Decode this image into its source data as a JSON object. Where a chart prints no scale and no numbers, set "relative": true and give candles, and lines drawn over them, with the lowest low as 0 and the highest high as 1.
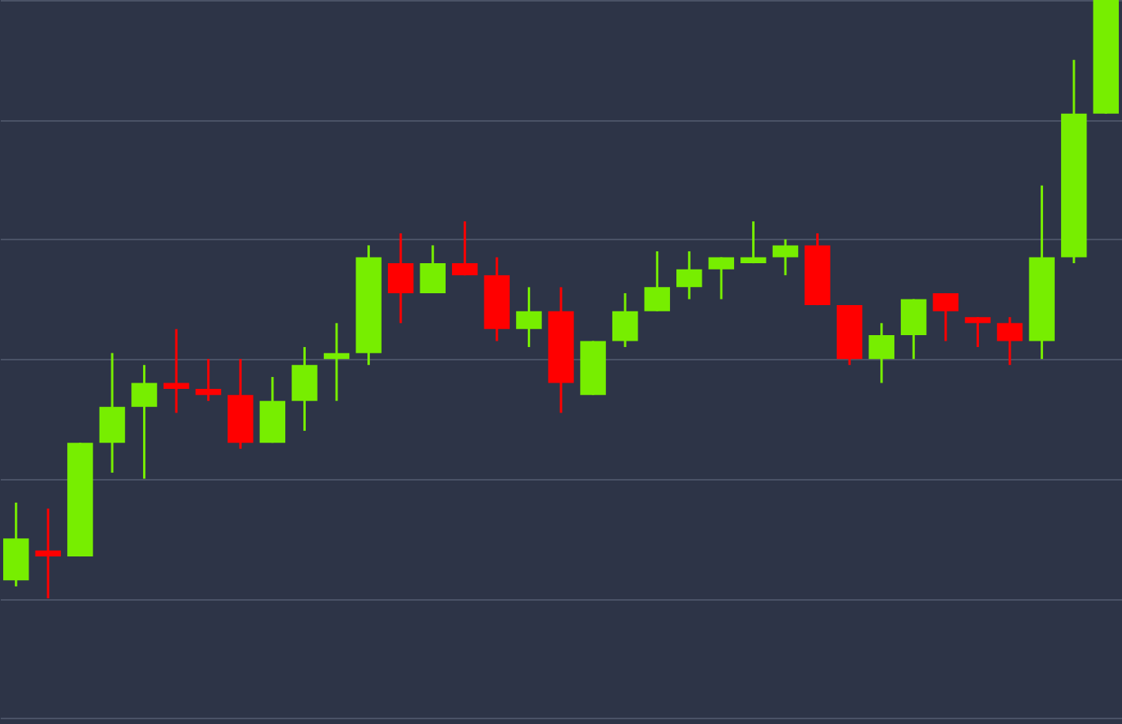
{
  "chart_data": {
    "type": "candlestick",
    "relative": true,
    "grid": true,
    "categories": [
      null,
      null,
      null,
      null,
      null,
      null,
      null,
      null,
      null,
      null,
      null,
      null,
      null,
      null,
      null,
      null,
      null,
      null,
      null,
      null,
      null,
      null,
      null,
      null,
      null,
      null,
      null,
      null,
      null,
      null,
      null,
      null,
      null,
      null,
      null
    ],
    "ohlc": [
      [
        0.03,
        0.16,
        0.02,
        0.1
      ],
      [
        0.08,
        0.15,
        0,
        0.07
      ],
      [
        0.07,
        0.26,
        0.07,
        0.26
      ],
      [
        0.26,
        0.41,
        0.21,
        0.32
      ],
      [
        0.32,
        0.39,
        0.2,
        0.36
      ],
      [
        0.36,
        0.45,
        0.31,
        0.35
      ],
      [
        0.35,
        0.4,
        0.33,
        0.34
      ],
      [
        0.34,
        0.4,
        0.25,
        0.26
      ],
      [
        0.26,
        0.37,
        0.26,
        0.33
      ],
      [
        0.33,
        0.42,
        0.28,
        0.39
      ],
      [
        0.4,
        0.46,
        0.33,
        0.41
      ],
      [
        0.41,
        0.59,
        0.39,
        0.57
      ],
      [
        0.56,
        0.61,
        0.46,
        0.51
      ],
      [
        0.51,
        0.59,
        0.51,
        0.56
      ],
      [
        0.56,
        0.63,
        0.54,
        0.54
      ],
      [
        0.54,
        0.57,
        0.43,
        0.45
      ],
      [
        0.45,
        0.52,
        0.42,
        0.48
      ],
      [
        0.48,
        0.52,
        0.31,
        0.36
      ],
      [
        0.34,
        0.43,
        0.34,
        0.43
      ],
      [
        0.43,
        0.51,
        0.42,
        0.48
      ],
      [
        0.48,
        0.58,
        0.48,
        0.52
      ],
      [
        0.52,
        0.58,
        0.5,
        0.55
      ],
      [
        0.55,
        0.57,
        0.5,
        0.57
      ],
      [
        0.56,
        0.63,
        0.56,
        0.57
      ],
      [
        0.57,
        0.6,
        0.54,
        0.59
      ],
      [
        0.59,
        0.61,
        0.49,
        0.49
      ],
      [
        0.49,
        0.49,
        0.39,
        0.4
      ],
      [
        0.4,
        0.46,
        0.36,
        0.44
      ],
      [
        0.44,
        0.5,
        0.4,
        0.5
      ],
      [
        0.51,
        0.51,
        0.43,
        0.48
      ],
      [
        0.47,
        0.47,
        0.42,
        0.46
      ],
      [
        0.46,
        0.47,
        0.39,
        0.43
      ],
      [
        0.43,
        0.69,
        0.4,
        0.57
      ],
      [
        0.57,
        0.9,
        0.56,
        0.81
      ],
      [
        0.81,
        1,
        0.81,
        1
      ]
    ],
    "colors": [
      "#77ee00",
      "#ff0000",
      "#77ee00",
      "#77ee00",
      "#77ee00",
      "#ff0000",
      "#ff0000",
      "#ff0000",
      "#77ee00",
      "#77ee00",
      "#77ee00",
      "#77ee00",
      "#ff0000",
      "#77ee00",
      "#ff0000",
      "#ff0000",
      "#77ee00",
      "#ff0000",
      "#77ee00",
      "#77ee00",
      "#77ee00",
      "#77ee00",
      "#77ee00",
      "#77ee00",
      "#77ee00",
      "#ff0000",
      "#ff0000",
      "#77ee00",
      "#77ee00",
      "#ff0000",
      "#ff0000",
      "#ff0000",
      "#77ee00",
      "#77ee00",
      "#77ee00"
    ]
  }
}
